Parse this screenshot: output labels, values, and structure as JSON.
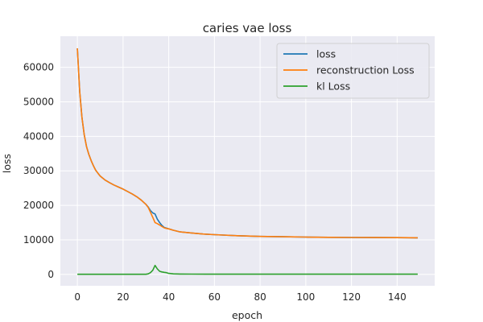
{
  "chart_data": {
    "type": "line",
    "title": "caries vae loss",
    "xlabel": "epoch",
    "ylabel": "loss",
    "xlim": [
      -7.45,
      156.45
    ],
    "ylim": [
      -3300,
      69000
    ],
    "xticks": [
      0,
      20,
      40,
      60,
      80,
      100,
      120,
      140
    ],
    "yticks": [
      0,
      10000,
      20000,
      30000,
      40000,
      50000,
      60000
    ],
    "grid": true,
    "legend_position": "top-right",
    "series": [
      {
        "name": "loss",
        "color": "#1f77b4",
        "x": [
          0,
          1,
          2,
          3,
          4,
          5,
          6,
          7,
          8,
          9,
          10,
          12,
          14,
          16,
          18,
          20,
          22,
          24,
          26,
          28,
          30,
          31,
          32,
          33,
          34,
          35,
          36,
          37,
          38,
          39,
          40,
          42,
          45,
          50,
          55,
          60,
          70,
          80,
          90,
          100,
          110,
          120,
          130,
          140,
          149
        ],
        "y": [
          65500,
          53000,
          45500,
          40500,
          37000,
          34800,
          33000,
          31500,
          30200,
          29300,
          28500,
          27400,
          26600,
          25900,
          25300,
          24700,
          24000,
          23300,
          22500,
          21500,
          20300,
          19500,
          18500,
          17800,
          17500,
          16000,
          15000,
          14200,
          13600,
          13400,
          13200,
          12800,
          12300,
          12000,
          11700,
          11500,
          11200,
          11000,
          10900,
          10800,
          10750,
          10700,
          10680,
          10650,
          10600
        ]
      },
      {
        "name": "reconstruction Loss",
        "color": "#ff7f0e",
        "x": [
          0,
          1,
          2,
          3,
          4,
          5,
          6,
          7,
          8,
          9,
          10,
          12,
          14,
          16,
          18,
          20,
          22,
          24,
          26,
          28,
          30,
          31,
          32,
          33,
          34,
          35,
          36,
          37,
          38,
          39,
          40,
          42,
          45,
          50,
          55,
          60,
          70,
          80,
          90,
          100,
          110,
          120,
          130,
          140,
          149
        ],
        "y": [
          65500,
          53000,
          45500,
          40500,
          37000,
          34800,
          33000,
          31500,
          30200,
          29300,
          28500,
          27400,
          26600,
          25900,
          25300,
          24700,
          24000,
          23300,
          22500,
          21500,
          20300,
          19400,
          18000,
          16500,
          15000,
          14700,
          14300,
          13900,
          13500,
          13300,
          13200,
          12800,
          12300,
          12000,
          11700,
          11500,
          11200,
          11000,
          10900,
          10800,
          10750,
          10700,
          10680,
          10650,
          10600
        ]
      },
      {
        "name": "kl Loss",
        "color": "#2ca02c",
        "x": [
          0,
          10,
          20,
          30,
          31,
          32,
          33,
          34,
          35,
          36,
          37,
          38,
          39,
          40,
          42,
          45,
          50,
          60,
          80,
          100,
          120,
          140,
          149
        ],
        "y": [
          30,
          30,
          30,
          40,
          150,
          500,
          1200,
          2600,
          1600,
          900,
          700,
          600,
          500,
          300,
          150,
          100,
          80,
          70,
          60,
          60,
          60,
          60,
          60
        ]
      }
    ]
  }
}
